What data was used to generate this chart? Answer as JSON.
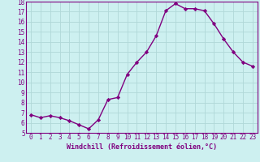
{
  "x": [
    0,
    1,
    2,
    3,
    4,
    5,
    6,
    7,
    8,
    9,
    10,
    11,
    12,
    13,
    14,
    15,
    16,
    17,
    18,
    19,
    20,
    21,
    22,
    23
  ],
  "y": [
    6.8,
    6.5,
    6.7,
    6.5,
    6.2,
    5.8,
    5.4,
    6.3,
    8.3,
    8.5,
    10.8,
    12.0,
    13.0,
    14.6,
    17.1,
    17.8,
    17.3,
    17.3,
    17.1,
    15.8,
    14.3,
    13.0,
    12.0,
    11.6
  ],
  "line_color": "#800080",
  "marker": "D",
  "marker_size": 2.2,
  "line_width": 1.0,
  "bg_color": "#cdf0f0",
  "grid_color": "#b0d8d8",
  "xlabel": "Windchill (Refroidissement éolien,°C)",
  "ylim": [
    5,
    18
  ],
  "xlim_min": -0.5,
  "xlim_max": 23.5,
  "yticks": [
    5,
    6,
    7,
    8,
    9,
    10,
    11,
    12,
    13,
    14,
    15,
    16,
    17,
    18
  ],
  "xticks": [
    0,
    1,
    2,
    3,
    4,
    5,
    6,
    7,
    8,
    9,
    10,
    11,
    12,
    13,
    14,
    15,
    16,
    17,
    18,
    19,
    20,
    21,
    22,
    23
  ],
  "tick_label_fontsize": 5.5,
  "xlabel_fontsize": 6.0,
  "tick_color": "#800080",
  "label_color": "#800080",
  "spine_color": "#800080"
}
